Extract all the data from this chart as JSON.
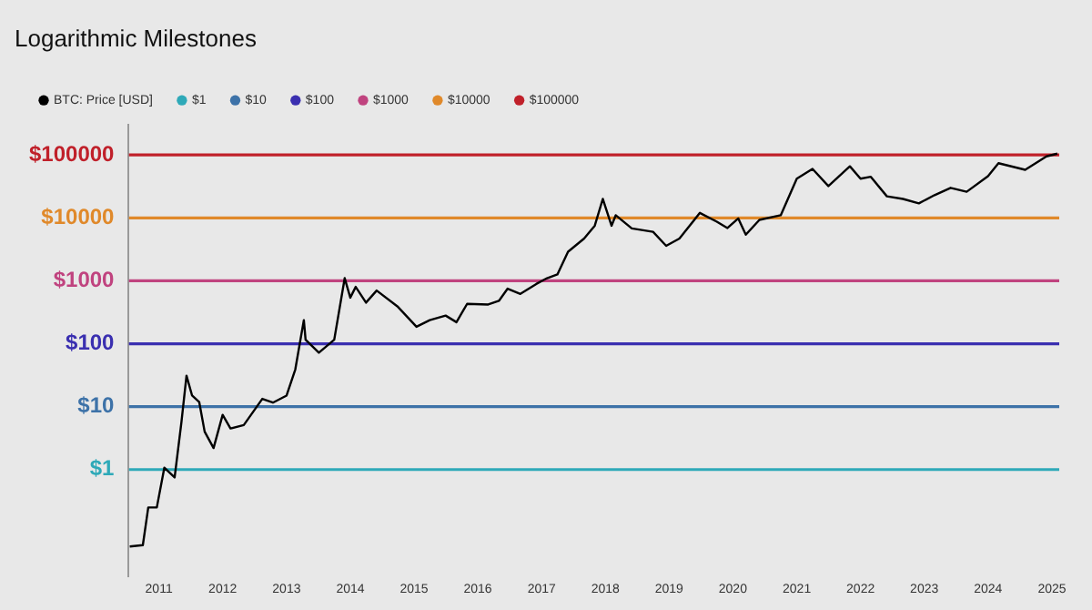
{
  "chart_data": {
    "type": "line",
    "title": "Logarithmic Milestones",
    "log": "y",
    "legend": "top left",
    "marker": "none",
    "line_style": "solid",
    "grid": false,
    "xlim": [
      "2010-07-12",
      "2025-02-12"
    ],
    "xticks": [
      "2011",
      "2012",
      "2013",
      "2014",
      "2015",
      "2016",
      "2017",
      "2018",
      "2019",
      "2020",
      "2021",
      "2022",
      "2023",
      "2024",
      "2025"
    ],
    "ylim": [
      0.02,
      300000
    ],
    "yticks": [
      {
        "value": 1,
        "label": "$1"
      },
      {
        "value": 10,
        "label": "$10"
      },
      {
        "value": 100,
        "label": "$100"
      },
      {
        "value": 1000,
        "label": "$1000"
      },
      {
        "value": 10000,
        "label": "$10000"
      },
      {
        "value": 100000,
        "label": "$100000"
      }
    ],
    "series": [
      {
        "name": "BTC: Price [USD]",
        "color": "#000000",
        "x": [
          "2010-07-18",
          "2010-10",
          "2010-11",
          "2010-12-20",
          "2011-02",
          "2011-04-01",
          "2011-05-10",
          "2011-06-08",
          "2011-07-10",
          "2011-08-20",
          "2011-09-20",
          "2011-11-10",
          "2012-01-01",
          "2012-02-15",
          "2012-05",
          "2012-08-15",
          "2012-10-15",
          "2013-01-01",
          "2013-02-20",
          "2013-04-10",
          "2013-04-20",
          "2013-07-05",
          "2013-10",
          "2013-11-30",
          "2014-01-01",
          "2014-02",
          "2014-04",
          "2014-06",
          "2014-10",
          "2015-01-15",
          "2015-04",
          "2015-07",
          "2015-09",
          "2015-11",
          "2016-03",
          "2016-05",
          "2016-06-20",
          "2016-09",
          "2016-12",
          "2017-02",
          "2017-04",
          "2017-06",
          "2017-09",
          "2017-11",
          "2017-12-17",
          "2018-02-05",
          "2018-03",
          "2018-06",
          "2018-10",
          "2018-12-15",
          "2019-03",
          "2019-06-26",
          "2019-10",
          "2019-12",
          "2020-02",
          "2020-03-15",
          "2020-06",
          "2020-10",
          "2021-01",
          "2021-04",
          "2021-07",
          "2021-11",
          "2022-01",
          "2022-03",
          "2022-06",
          "2022-09",
          "2022-12",
          "2023-03",
          "2023-06",
          "2023-09",
          "2024-01",
          "2024-03",
          "2024-08",
          "2024-12",
          "2025-02"
        ],
        "values": [
          0.06,
          0.063,
          0.25,
          0.25,
          1.07,
          0.75,
          5.7,
          31,
          15,
          11.8,
          4,
          2.2,
          7.4,
          4.5,
          5.1,
          13.3,
          11.6,
          15,
          39,
          237,
          116,
          72,
          116,
          1100,
          540,
          800,
          450,
          700,
          385,
          186,
          237,
          280,
          220,
          430,
          420,
          480,
          750,
          620,
          890,
          1100,
          1260,
          2900,
          4700,
          7500,
          20000,
          7500,
          11000,
          6800,
          6000,
          3600,
          4700,
          12000,
          8700,
          6900,
          9800,
          5400,
          9300,
          11000,
          42000,
          60000,
          32000,
          66000,
          42000,
          45000,
          22000,
          20000,
          17000,
          23000,
          30000,
          26000,
          46000,
          74000,
          58000,
          95000,
          105000
        ]
      },
      {
        "name": "$1",
        "color": "#2ea9b8",
        "x": [
          "2010-07-12",
          "2025-02-12"
        ],
        "values": [
          1,
          1
        ]
      },
      {
        "name": "$10",
        "color": "#3d72a8",
        "x": [
          "2010-07-12",
          "2025-02-12"
        ],
        "values": [
          10,
          10
        ]
      },
      {
        "name": "$100",
        "color": "#3a2fb0",
        "x": [
          "2010-07-12",
          "2025-02-12"
        ],
        "values": [
          100,
          100
        ]
      },
      {
        "name": "$1000",
        "color": "#c0437f",
        "x": [
          "2010-07-12",
          "2025-02-12"
        ],
        "values": [
          1000,
          1000
        ]
      },
      {
        "name": "$10000",
        "color": "#e0892a",
        "x": [
          "2010-07-12",
          "2025-02-12"
        ],
        "values": [
          10000,
          10000
        ]
      },
      {
        "name": "$100000",
        "color": "#c0202a",
        "x": [
          "2010-07-12",
          "2025-02-12"
        ],
        "values": [
          100000,
          100000
        ]
      }
    ]
  }
}
